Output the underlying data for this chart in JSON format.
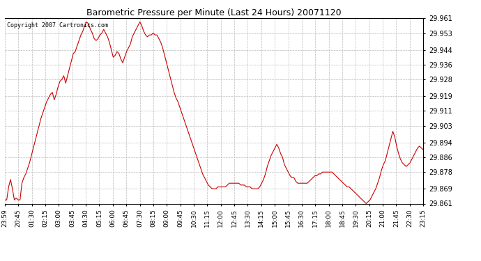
{
  "title": "Barometric Pressure per Minute (Last 24 Hours) 20071120",
  "copyright": "Copyright 2007 Cartronics.com",
  "line_color": "#cc0000",
  "background_color": "#ffffff",
  "grid_color": "#bbbbbb",
  "ylim": [
    29.861,
    29.961
  ],
  "yticks": [
    29.861,
    29.869,
    29.878,
    29.886,
    29.894,
    29.903,
    29.911,
    29.919,
    29.928,
    29.936,
    29.944,
    29.953,
    29.961
  ],
  "xtick_labels": [
    "23:59",
    "20:45",
    "01:30",
    "02:15",
    "03:00",
    "03:45",
    "04:30",
    "05:15",
    "06:00",
    "06:45",
    "07:30",
    "08:15",
    "09:00",
    "09:45",
    "10:30",
    "11:15",
    "12:00",
    "12:45",
    "13:30",
    "14:15",
    "15:00",
    "15:45",
    "16:30",
    "17:15",
    "18:00",
    "18:45",
    "19:30",
    "20:15",
    "21:00",
    "21:45",
    "22:30",
    "23:15"
  ],
  "pressure_data": [
    29.863,
    29.863,
    29.87,
    29.874,
    29.869,
    29.863,
    29.864,
    29.863,
    29.863,
    29.872,
    29.875,
    29.877,
    29.88,
    29.883,
    29.887,
    29.891,
    29.895,
    29.899,
    29.903,
    29.907,
    29.91,
    29.913,
    29.916,
    29.918,
    29.92,
    29.921,
    29.917,
    29.92,
    29.924,
    29.927,
    29.928,
    29.93,
    29.926,
    29.93,
    29.934,
    29.938,
    29.942,
    29.943,
    29.946,
    29.949,
    29.952,
    29.954,
    29.957,
    29.959,
    29.958,
    29.955,
    29.953,
    29.95,
    29.949,
    29.95,
    29.952,
    29.953,
    29.955,
    29.953,
    29.951,
    29.948,
    29.944,
    29.94,
    29.941,
    29.943,
    29.942,
    29.939,
    29.937,
    29.94,
    29.943,
    29.945,
    29.947,
    29.951,
    29.953,
    29.955,
    29.957,
    29.959,
    29.957,
    29.954,
    29.952,
    29.951,
    29.952,
    29.952,
    29.953,
    29.952,
    29.952,
    29.95,
    29.948,
    29.945,
    29.941,
    29.937,
    29.933,
    29.929,
    29.925,
    29.921,
    29.918,
    29.916,
    29.913,
    29.91,
    29.907,
    29.904,
    29.901,
    29.898,
    29.895,
    29.892,
    29.889,
    29.886,
    29.883,
    29.88,
    29.877,
    29.875,
    29.873,
    29.871,
    29.87,
    29.869,
    29.869,
    29.869,
    29.87,
    29.87,
    29.87,
    29.87,
    29.87,
    29.871,
    29.872,
    29.872,
    29.872,
    29.872,
    29.872,
    29.872,
    29.871,
    29.871,
    29.871,
    29.87,
    29.87,
    29.87,
    29.869,
    29.869,
    29.869,
    29.869,
    29.87,
    29.872,
    29.874,
    29.877,
    29.881,
    29.884,
    29.887,
    29.889,
    29.891,
    29.893,
    29.891,
    29.888,
    29.886,
    29.882,
    29.88,
    29.878,
    29.876,
    29.875,
    29.875,
    29.873,
    29.872,
    29.872,
    29.872,
    29.872,
    29.872,
    29.872,
    29.873,
    29.874,
    29.875,
    29.876,
    29.876,
    29.877,
    29.877,
    29.878,
    29.878,
    29.878,
    29.878,
    29.878,
    29.878,
    29.877,
    29.876,
    29.875,
    29.874,
    29.873,
    29.872,
    29.871,
    29.87,
    29.87,
    29.869,
    29.868,
    29.867,
    29.866,
    29.865,
    29.864,
    29.863,
    29.862,
    29.861,
    29.862,
    29.863,
    29.865,
    29.867,
    29.869,
    29.872,
    29.875,
    29.879,
    29.882,
    29.884,
    29.888,
    29.892,
    29.896,
    29.9,
    29.897,
    29.892,
    29.888,
    29.885,
    29.883,
    29.882,
    29.881,
    29.882,
    29.883,
    29.885,
    29.887,
    29.889,
    29.891,
    29.892,
    29.891,
    29.89
  ]
}
